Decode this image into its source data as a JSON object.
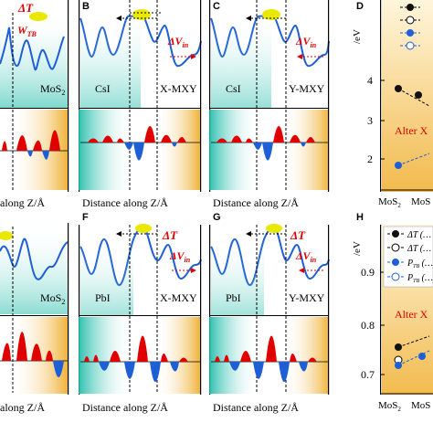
{
  "panels": {
    "A": {
      "label": "",
      "left_text": "",
      "right_text": "MoS",
      "right_sub": "2",
      "xlabel": "along Z/Å",
      "delta_t": "ΔT",
      "w_tb": "W",
      "w_tb_sub": "TB"
    },
    "B": {
      "label": "B",
      "left_text": "CsI",
      "right_text": "X-MXY",
      "xlabel": "Distance along Z/Å",
      "delta_v": "ΔV",
      "delta_v_sub": "in"
    },
    "C": {
      "label": "C",
      "left_text": "CsI",
      "right_text": "Y-MXY",
      "xlabel": "Distance along Z/Å",
      "delta_t": "ΔT",
      "delta_v": "ΔV",
      "delta_v_sub": "in"
    },
    "D": {
      "label": "D",
      "ylabel": "/eV",
      "ticks": [
        "4",
        "3",
        "2"
      ],
      "xticks": [
        "MoS",
        "MoS"
      ],
      "xtick_sub": "2",
      "annotation": "Alter X"
    },
    "E": {
      "label": "",
      "right_text": "MoS",
      "right_sub": "2",
      "xlabel": "along Z/Å"
    },
    "F": {
      "label": "F",
      "left_text": "PbI",
      "right_text": "X-MXY",
      "xlabel": "Distance along Z/Å",
      "delta_t": "ΔT",
      "delta_v": "ΔV",
      "delta_v_sub": "in"
    },
    "G": {
      "label": "G",
      "left_text": "PbI",
      "right_text": "Y-MXY",
      "xlabel": "Distance along Z/Å",
      "delta_t": "ΔT",
      "delta_v": "ΔV",
      "delta_v_sub": "in"
    },
    "H": {
      "label": "H",
      "ylabel": "/eV",
      "ticks": [
        "0.9",
        "0.8",
        "0.7"
      ],
      "xticks": [
        "MoS",
        "MoS"
      ],
      "xtick_sub": "2",
      "annotation": "Alter X",
      "legend": [
        {
          "sym": "ΔT",
          "txt": "(…"
        },
        {
          "sym": "ΔT",
          "txt": "(…"
        },
        {
          "sym": "P",
          "sub": "TB",
          "txt": "(…"
        },
        {
          "sym": "P",
          "sub": "TB",
          "txt": "(…"
        }
      ]
    }
  },
  "colors": {
    "blue": "#1f5fd6",
    "red": "#e00000",
    "teal": "#14b7a5",
    "orange": "#f2b63a",
    "yellow": "#e8e800",
    "navy": "#0b2a8a"
  }
}
